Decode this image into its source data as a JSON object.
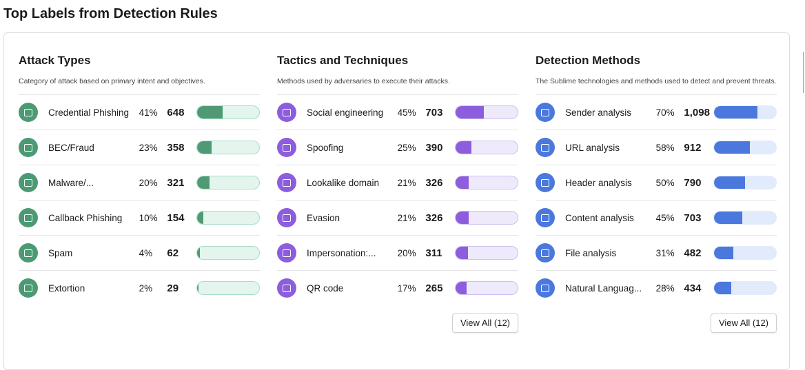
{
  "title": "Top Labels from Detection Rules",
  "sections": [
    {
      "title": "Attack Types",
      "description": "Category of attack based on primary intent and objectives.",
      "theme": "green",
      "rows": [
        {
          "label": "Credential Phishing",
          "percent": "41%",
          "count": "648"
        },
        {
          "label": "BEC/Fraud",
          "percent": "23%",
          "count": "358"
        },
        {
          "label": "Malware/...",
          "percent": "20%",
          "count": "321"
        },
        {
          "label": "Callback Phishing",
          "percent": "10%",
          "count": "154"
        },
        {
          "label": "Spam",
          "percent": "4%",
          "count": "62"
        },
        {
          "label": "Extortion",
          "percent": "2%",
          "count": "29"
        }
      ]
    },
    {
      "title": "Tactics and Techniques",
      "description": "Methods used by adversaries to execute their attacks.",
      "theme": "purple",
      "rows": [
        {
          "label": "Social engineering",
          "percent": "45%",
          "count": "703"
        },
        {
          "label": "Spoofing",
          "percent": "25%",
          "count": "390"
        },
        {
          "label": "Lookalike domain",
          "percent": "21%",
          "count": "326"
        },
        {
          "label": "Evasion",
          "percent": "21%",
          "count": "326"
        },
        {
          "label": "Impersonation:...",
          "percent": "20%",
          "count": "311"
        },
        {
          "label": "QR code",
          "percent": "17%",
          "count": "265"
        }
      ],
      "button": "View All (12)"
    },
    {
      "title": "Detection Methods",
      "description": "The Sublime technologies and methods used to detect and prevent threats.",
      "theme": "blue",
      "rows": [
        {
          "label": "Sender analysis",
          "percent": "70%",
          "count": "1,098"
        },
        {
          "label": "URL analysis",
          "percent": "58%",
          "count": "912"
        },
        {
          "label": "Header analysis",
          "percent": "50%",
          "count": "790"
        },
        {
          "label": "Content analysis",
          "percent": "45%",
          "count": "703"
        },
        {
          "label": "File analysis",
          "percent": "31%",
          "count": "482"
        },
        {
          "label": "Natural Languag...",
          "percent": "28%",
          "count": "434"
        }
      ],
      "button": "View All (12)"
    }
  ]
}
